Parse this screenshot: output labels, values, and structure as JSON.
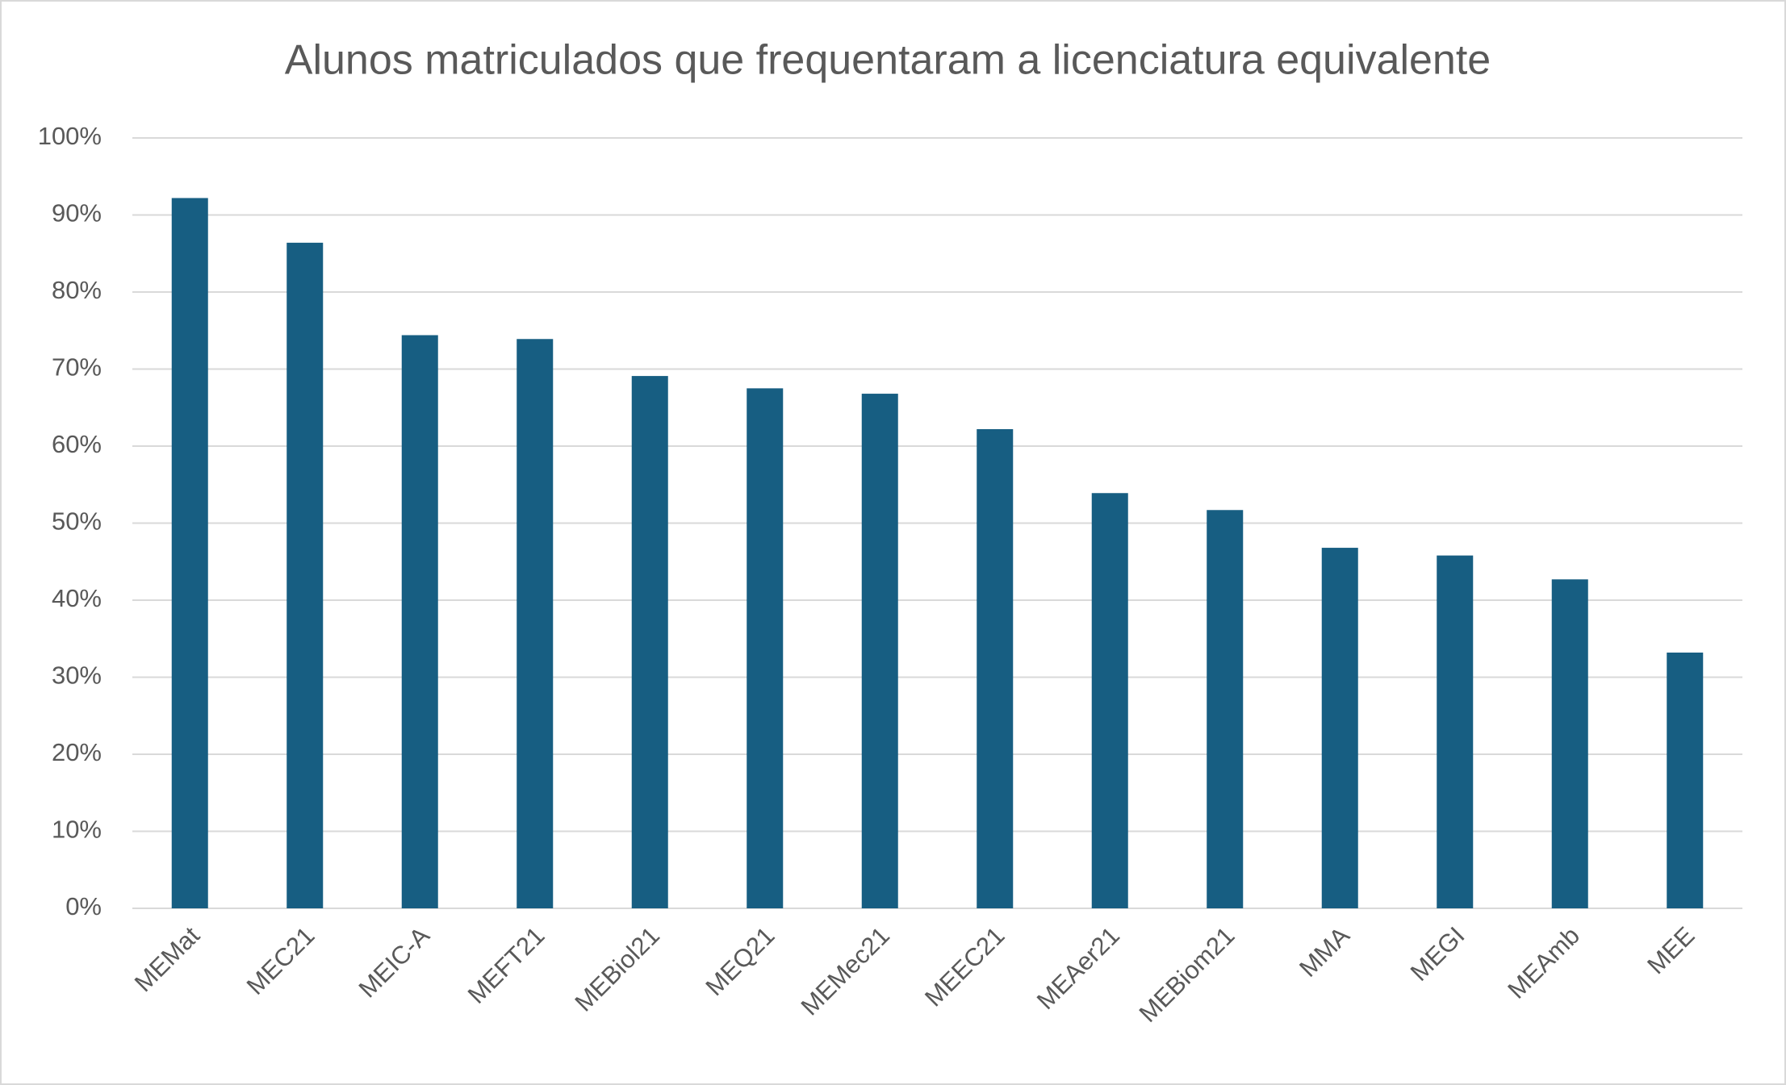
{
  "chart_data": {
    "type": "bar",
    "title": "Alunos matriculados que frequentaram a licenciatura equivalente",
    "categories": [
      "MEMat",
      "MEC21",
      "MEIC-A",
      "MEFT21",
      "MEBiol21",
      "MEQ21",
      "MEMec21",
      "MEEC21",
      "MEAer21",
      "MEBiom21",
      "MMA",
      "MEGI",
      "MEAmb",
      "MEE"
    ],
    "values": [
      92.2,
      86.4,
      74.4,
      73.9,
      69.1,
      67.5,
      66.8,
      62.2,
      53.9,
      51.7,
      46.8,
      45.8,
      42.7,
      33.2
    ],
    "color": "#175e82",
    "ylim": [
      0,
      100
    ],
    "yticks": [
      {
        "value": 0,
        "label": "0%"
      },
      {
        "value": 10,
        "label": "10%"
      },
      {
        "value": 20,
        "label": "20%"
      },
      {
        "value": 30,
        "label": "30%"
      },
      {
        "value": 40,
        "label": "40%"
      },
      {
        "value": 50,
        "label": "50%"
      },
      {
        "value": 60,
        "label": "60%"
      },
      {
        "value": 70,
        "label": "70%"
      },
      {
        "value": 80,
        "label": "80%"
      },
      {
        "value": 90,
        "label": "90%"
      },
      {
        "value": 100,
        "label": "100%"
      }
    ],
    "grid": true
  }
}
